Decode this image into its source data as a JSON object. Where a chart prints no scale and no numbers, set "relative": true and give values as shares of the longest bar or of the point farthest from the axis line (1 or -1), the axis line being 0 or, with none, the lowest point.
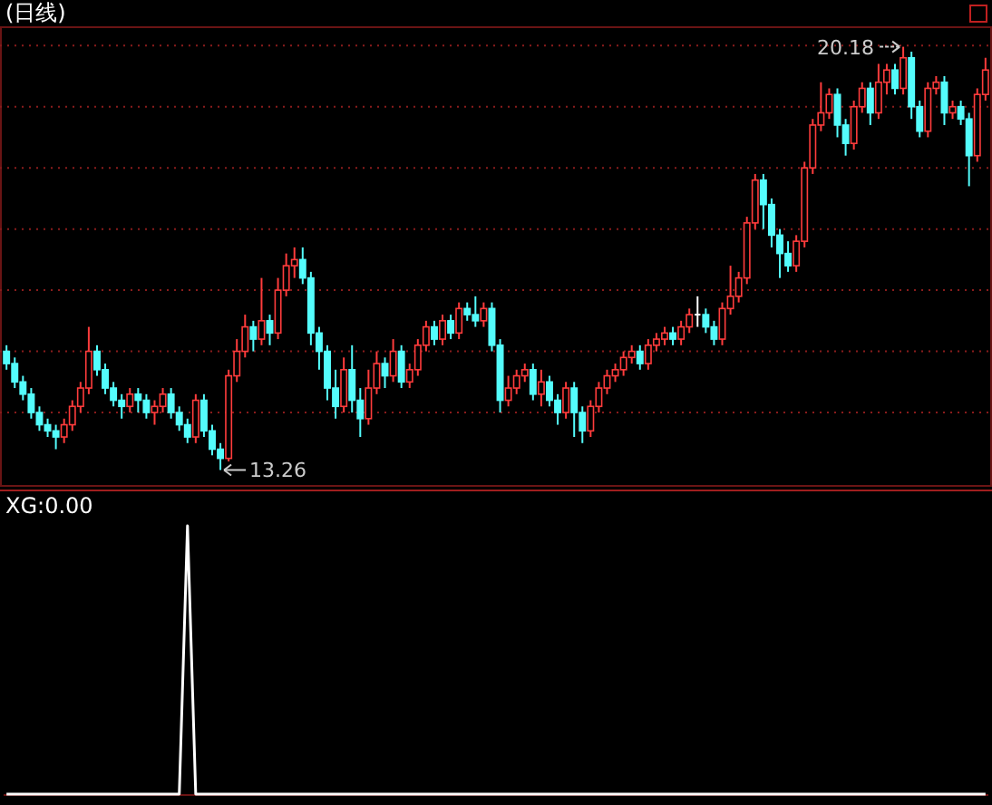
{
  "chart_data": [
    {
      "type": "candlestick",
      "title": "(日线)",
      "grid": "y",
      "ylim": [
        13.0,
        20.5
      ],
      "yticks": [
        {
          "value": 14.2,
          "label": null
        },
        {
          "value": 15.2,
          "label": null
        },
        {
          "value": 16.2,
          "label": null
        },
        {
          "value": 17.2,
          "label": null
        },
        {
          "value": 18.2,
          "label": null
        },
        {
          "value": 19.2,
          "label": null
        },
        {
          "value": 20.2,
          "label": null
        }
      ],
      "annotations": [
        "20.18",
        "13.26"
      ],
      "categories": [
        null,
        null,
        null,
        null,
        null,
        null,
        null,
        null,
        null,
        null,
        null,
        null,
        null,
        null,
        null,
        null,
        null,
        null,
        null,
        null,
        null,
        null,
        null,
        null,
        null,
        null,
        null,
        null,
        null,
        null,
        null,
        null,
        null,
        null,
        null,
        null,
        null,
        null,
        null,
        null,
        null,
        null,
        null,
        null,
        null,
        null,
        null,
        null,
        null,
        null,
        null,
        null,
        null,
        null,
        null,
        null,
        null,
        null,
        null,
        null,
        null,
        null,
        null,
        null,
        null,
        null,
        null,
        null,
        null,
        null,
        null,
        null,
        null,
        null,
        null,
        null,
        null,
        null,
        null,
        null,
        null,
        null,
        null,
        null,
        null,
        null,
        null,
        null,
        null,
        null,
        null,
        null,
        null,
        null,
        null,
        null,
        null,
        null,
        null,
        null,
        null,
        null,
        null,
        null,
        null,
        null,
        null,
        null,
        null,
        null,
        null,
        null,
        null,
        null,
        null,
        null,
        null,
        null,
        null,
        null
      ],
      "ohlc": [
        [
          15.2,
          15.3,
          14.9,
          15.0
        ],
        [
          15.0,
          15.1,
          14.6,
          14.7
        ],
        [
          14.7,
          14.8,
          14.4,
          14.5
        ],
        [
          14.5,
          14.6,
          14.1,
          14.2
        ],
        [
          14.2,
          14.3,
          13.9,
          14.0
        ],
        [
          14.0,
          14.1,
          13.8,
          13.9
        ],
        [
          13.9,
          14.0,
          13.6,
          13.8
        ],
        [
          13.8,
          14.1,
          13.7,
          14.0
        ],
        [
          14.0,
          14.4,
          13.9,
          14.3
        ],
        [
          14.3,
          14.7,
          14.2,
          14.6
        ],
        [
          14.6,
          15.6,
          14.5,
          15.2
        ],
        [
          15.2,
          15.3,
          14.8,
          14.9
        ],
        [
          14.9,
          15.0,
          14.5,
          14.6
        ],
        [
          14.6,
          14.7,
          14.3,
          14.4
        ],
        [
          14.4,
          14.5,
          14.1,
          14.3
        ],
        [
          14.3,
          14.6,
          14.2,
          14.5
        ],
        [
          14.5,
          14.6,
          14.2,
          14.4
        ],
        [
          14.4,
          14.5,
          14.1,
          14.2
        ],
        [
          14.2,
          14.4,
          14.0,
          14.3
        ],
        [
          14.3,
          14.6,
          14.2,
          14.5
        ],
        [
          14.5,
          14.6,
          14.1,
          14.2
        ],
        [
          14.2,
          14.3,
          13.9,
          14.0
        ],
        [
          14.0,
          14.1,
          13.7,
          13.8
        ],
        [
          13.8,
          14.5,
          13.7,
          14.4
        ],
        [
          14.4,
          14.5,
          13.8,
          13.9
        ],
        [
          13.9,
          14.0,
          13.5,
          13.6
        ],
        [
          13.6,
          13.7,
          13.26,
          13.45
        ],
        [
          13.45,
          14.9,
          13.4,
          14.8
        ],
        [
          14.8,
          15.4,
          14.7,
          15.2
        ],
        [
          15.2,
          15.8,
          15.1,
          15.6
        ],
        [
          15.6,
          15.7,
          15.2,
          15.4
        ],
        [
          15.4,
          16.4,
          15.3,
          15.7
        ],
        [
          15.7,
          15.8,
          15.3,
          15.5
        ],
        [
          15.5,
          16.4,
          15.4,
          16.2
        ],
        [
          16.2,
          16.8,
          16.1,
          16.6
        ],
        [
          16.6,
          16.9,
          16.4,
          16.7
        ],
        [
          16.7,
          16.9,
          16.3,
          16.4
        ],
        [
          16.4,
          16.5,
          15.3,
          15.5
        ],
        [
          15.5,
          15.6,
          14.9,
          15.2
        ],
        [
          15.2,
          15.3,
          14.4,
          14.6
        ],
        [
          14.6,
          14.9,
          14.1,
          14.3
        ],
        [
          14.3,
          15.1,
          14.2,
          14.9
        ],
        [
          14.9,
          15.3,
          14.2,
          14.4
        ],
        [
          14.4,
          14.6,
          13.8,
          14.1
        ],
        [
          14.1,
          14.9,
          14.0,
          14.6
        ],
        [
          14.6,
          15.2,
          14.5,
          15.0
        ],
        [
          15.0,
          15.1,
          14.6,
          14.8
        ],
        [
          14.8,
          15.4,
          14.7,
          15.2
        ],
        [
          15.2,
          15.3,
          14.6,
          14.7
        ],
        [
          14.7,
          15.0,
          14.6,
          14.9
        ],
        [
          14.9,
          15.4,
          14.8,
          15.3
        ],
        [
          15.3,
          15.7,
          15.2,
          15.6
        ],
        [
          15.6,
          15.7,
          15.3,
          15.4
        ],
        [
          15.4,
          15.8,
          15.3,
          15.7
        ],
        [
          15.7,
          15.8,
          15.4,
          15.5
        ],
        [
          15.5,
          16.0,
          15.4,
          15.9
        ],
        [
          15.9,
          16.0,
          15.7,
          15.8
        ],
        [
          15.8,
          16.1,
          15.6,
          15.7
        ],
        [
          15.7,
          16.0,
          15.6,
          15.9
        ],
        [
          15.9,
          16.0,
          15.2,
          15.3
        ],
        [
          15.3,
          15.4,
          14.2,
          14.4
        ],
        [
          14.4,
          14.8,
          14.3,
          14.6
        ],
        [
          14.6,
          14.9,
          14.5,
          14.8
        ],
        [
          14.8,
          15.0,
          14.7,
          14.9
        ],
        [
          14.9,
          15.0,
          14.4,
          14.5
        ],
        [
          14.5,
          14.9,
          14.3,
          14.7
        ],
        [
          14.7,
          14.8,
          14.3,
          14.4
        ],
        [
          14.4,
          14.5,
          14.0,
          14.2
        ],
        [
          14.2,
          14.7,
          14.1,
          14.6
        ],
        [
          14.6,
          14.7,
          13.8,
          14.2
        ],
        [
          14.2,
          14.3,
          13.7,
          13.9
        ],
        [
          13.9,
          14.4,
          13.8,
          14.3
        ],
        [
          14.3,
          14.7,
          14.2,
          14.6
        ],
        [
          14.6,
          14.9,
          14.5,
          14.8
        ],
        [
          14.8,
          15.0,
          14.7,
          14.9
        ],
        [
          14.9,
          15.2,
          14.8,
          15.1
        ],
        [
          15.1,
          15.3,
          15.0,
          15.2
        ],
        [
          15.2,
          15.3,
          14.9,
          15.0
        ],
        [
          15.0,
          15.4,
          14.9,
          15.3
        ],
        [
          15.3,
          15.5,
          15.2,
          15.4
        ],
        [
          15.4,
          15.6,
          15.3,
          15.5
        ],
        [
          15.5,
          15.6,
          15.3,
          15.4
        ],
        [
          15.4,
          15.7,
          15.3,
          15.6
        ],
        [
          15.6,
          15.9,
          15.5,
          15.8
        ],
        [
          15.8,
          16.1,
          15.6,
          15.8
        ],
        [
          15.8,
          15.9,
          15.5,
          15.6
        ],
        [
          15.6,
          15.7,
          15.3,
          15.4
        ],
        [
          15.4,
          16.0,
          15.3,
          15.9
        ],
        [
          15.9,
          16.6,
          15.8,
          16.1
        ],
        [
          16.1,
          16.5,
          16.0,
          16.4
        ],
        [
          16.4,
          17.4,
          16.3,
          17.3
        ],
        [
          17.3,
          18.1,
          17.2,
          18.0
        ],
        [
          18.0,
          18.1,
          17.2,
          17.6
        ],
        [
          17.6,
          17.7,
          16.9,
          17.1
        ],
        [
          17.1,
          17.2,
          16.4,
          16.8
        ],
        [
          16.8,
          17.0,
          16.5,
          16.6
        ],
        [
          16.6,
          17.1,
          16.5,
          17.0
        ],
        [
          17.0,
          18.3,
          16.9,
          18.2
        ],
        [
          18.2,
          19.0,
          18.1,
          18.9
        ],
        [
          18.9,
          19.6,
          18.8,
          19.1
        ],
        [
          19.1,
          19.5,
          19.0,
          19.4
        ],
        [
          19.4,
          19.5,
          18.7,
          18.9
        ],
        [
          18.9,
          19.0,
          18.4,
          18.6
        ],
        [
          18.6,
          19.3,
          18.5,
          19.2
        ],
        [
          19.2,
          19.6,
          19.1,
          19.5
        ],
        [
          19.5,
          19.6,
          18.9,
          19.1
        ],
        [
          19.1,
          19.9,
          19.0,
          19.6
        ],
        [
          19.6,
          19.9,
          19.4,
          19.8
        ],
        [
          19.8,
          19.9,
          19.4,
          19.5
        ],
        [
          19.5,
          20.18,
          19.4,
          20.0
        ],
        [
          20.0,
          20.1,
          19.0,
          19.2
        ],
        [
          19.2,
          19.3,
          18.7,
          18.8
        ],
        [
          18.8,
          19.6,
          18.7,
          19.5
        ],
        [
          19.5,
          19.7,
          19.4,
          19.6
        ],
        [
          19.6,
          19.7,
          18.9,
          19.1
        ],
        [
          19.1,
          19.3,
          19.0,
          19.2
        ],
        [
          19.2,
          19.3,
          18.9,
          19.0
        ],
        [
          19.0,
          19.1,
          17.9,
          18.4
        ],
        [
          18.4,
          19.5,
          18.3,
          19.4
        ],
        [
          19.4,
          20.0,
          19.3,
          19.8
        ]
      ]
    },
    {
      "type": "line",
      "title": "XG:0.00",
      "relative": true,
      "categories": [
        null,
        null,
        null,
        null,
        null,
        null,
        null,
        null,
        null,
        null,
        null,
        null,
        null,
        null,
        null,
        null,
        null,
        null,
        null,
        null,
        null,
        null,
        null,
        null,
        null,
        null,
        null,
        null,
        null,
        null,
        null,
        null,
        null,
        null,
        null,
        null,
        null,
        null,
        null,
        null,
        null,
        null,
        null,
        null,
        null,
        null,
        null,
        null,
        null,
        null,
        null,
        null,
        null,
        null,
        null,
        null,
        null,
        null,
        null,
        null,
        null,
        null,
        null,
        null,
        null,
        null,
        null,
        null,
        null,
        null,
        null,
        null,
        null,
        null,
        null,
        null,
        null,
        null,
        null,
        null,
        null,
        null,
        null,
        null,
        null,
        null,
        null,
        null,
        null,
        null,
        null,
        null,
        null,
        null,
        null,
        null,
        null,
        null,
        null,
        null,
        null,
        null,
        null,
        null,
        null,
        null,
        null,
        null,
        null,
        null,
        null,
        null,
        null,
        null,
        null,
        null,
        null,
        null,
        null,
        null
      ],
      "series": [
        {
          "color": "#ffffff",
          "values": [
            0,
            0,
            0,
            0,
            0,
            0,
            0,
            0,
            0,
            0,
            0,
            0,
            0,
            0,
            0,
            0,
            0,
            0,
            0,
            0,
            0,
            0,
            1,
            0,
            0,
            0,
            0,
            0,
            0,
            0,
            0,
            0,
            0,
            0,
            0,
            0,
            0,
            0,
            0,
            0,
            0,
            0,
            0,
            0,
            0,
            0,
            0,
            0,
            0,
            0,
            0,
            0,
            0,
            0,
            0,
            0,
            0,
            0,
            0,
            0,
            0,
            0,
            0,
            0,
            0,
            0,
            0,
            0,
            0,
            0,
            0,
            0,
            0,
            0,
            0,
            0,
            0,
            0,
            0,
            0,
            0,
            0,
            0,
            0,
            0,
            0,
            0,
            0,
            0,
            0,
            0,
            0,
            0,
            0,
            0,
            0,
            0,
            0,
            0,
            0,
            0,
            0,
            0,
            0,
            0,
            0,
            0,
            0,
            0,
            0,
            0,
            0,
            0,
            0,
            0,
            0,
            0,
            0,
            0,
            0
          ]
        }
      ]
    }
  ]
}
